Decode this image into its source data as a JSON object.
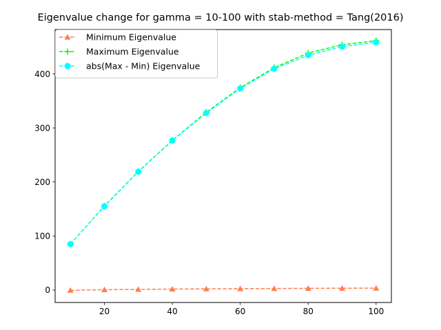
{
  "chart_data": {
    "type": "line",
    "title": "Eigenvalue change for gamma = 10-100 with stab-method = Tang(2016)",
    "xlabel": "",
    "ylabel": "",
    "xlim": [
      5.5,
      104.5
    ],
    "ylim": [
      -23,
      482
    ],
    "xticks": [
      20,
      40,
      60,
      80,
      100
    ],
    "yticks": [
      0,
      100,
      200,
      300,
      400
    ],
    "grid": false,
    "legend_position": "top-left",
    "x": [
      10,
      20,
      30,
      40,
      50,
      60,
      70,
      80,
      90,
      100
    ],
    "series": [
      {
        "name": "Minimum Eigenvalue",
        "color": "#ff7f50",
        "marker": "triangle",
        "linestyle": "dashed",
        "values": [
          -0.5,
          0.7,
          1.3,
          1.8,
          2.2,
          2.6,
          2.9,
          3.2,
          3.4,
          3.6
        ]
      },
      {
        "name": "Maximum Eigenvalue",
        "color": "#00ff00",
        "marker": "plus",
        "linestyle": "dashed",
        "values": [
          85,
          155.5,
          219.5,
          277,
          329,
          374.5,
          411.5,
          438.5,
          454,
          461.5
        ]
      },
      {
        "name": "abs(Max - Min) Eigenvalue",
        "color": "#00ffff",
        "marker": "circle",
        "linestyle": "dashed",
        "values": [
          85,
          155,
          219,
          276.5,
          327.5,
          373,
          409.5,
          434.5,
          450.5,
          458.5
        ]
      }
    ]
  }
}
